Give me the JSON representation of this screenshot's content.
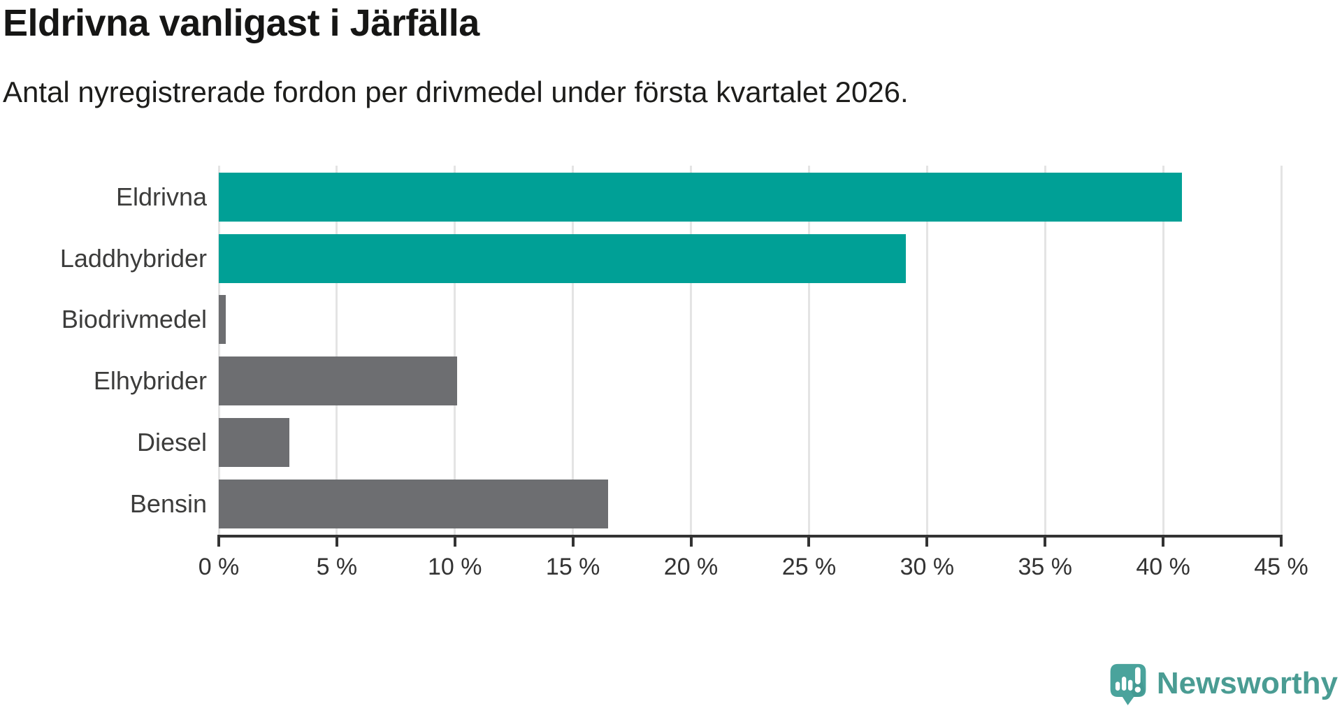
{
  "header": {
    "title": "Eldrivna vanligast i Järfälla",
    "subtitle": "Antal nyregistrerade fordon per drivmedel under första kvartalet 2026."
  },
  "chart_data": {
    "type": "bar",
    "orientation": "horizontal",
    "title": "Eldrivna vanligast i Järfälla",
    "subtitle": "Antal nyregistrerade fordon per drivmedel under första kvartalet 2026.",
    "categories": [
      "Eldrivna",
      "Laddhybrider",
      "Biodrivmedel",
      "Elhybrider",
      "Diesel",
      "Bensin"
    ],
    "values": [
      40.8,
      29.1,
      0.3,
      10.1,
      3.0,
      16.5
    ],
    "unit": "%",
    "bar_colors": [
      "#00a096",
      "#00a096",
      "#6d6e71",
      "#6d6e71",
      "#6d6e71",
      "#6d6e71"
    ],
    "highlight_color": "#00a096",
    "default_color": "#6d6e71",
    "xlim": [
      0,
      45
    ],
    "xticks": [
      0,
      5,
      10,
      15,
      20,
      25,
      30,
      35,
      40,
      45
    ],
    "xtick_labels": [
      "0 %",
      "5 %",
      "10 %",
      "15 %",
      "20 %",
      "25 %",
      "30 %",
      "35 %",
      "40 %",
      "45 %"
    ],
    "grid": "vertical",
    "gridline_color": "#e4e4e4",
    "axis_color": "#333333",
    "legend": "none"
  },
  "footer": {
    "brand_name": "Newsworthy",
    "brand_color": "#4a9c93",
    "logo_icon": "newsworthy-bubble-chart-icon"
  }
}
